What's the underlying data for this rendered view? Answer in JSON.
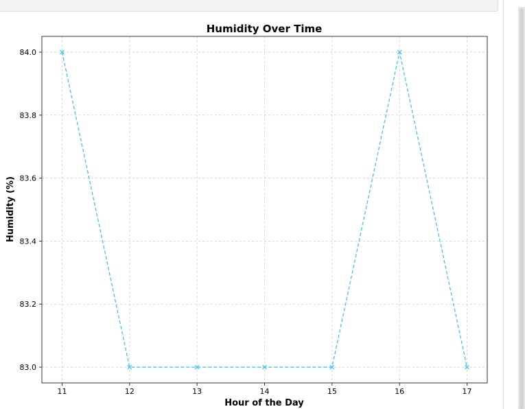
{
  "chart_data": {
    "type": "line",
    "title": "Humidity Over Time",
    "xlabel": "Hour of the Day",
    "ylabel": "Humidity (%)",
    "x": [
      11,
      12,
      13,
      14,
      15,
      16,
      17
    ],
    "series": [
      {
        "values": [
          84.0,
          83.0,
          83.0,
          83.0,
          83.0,
          84.0,
          83.0
        ],
        "color": "#3ec6f0"
      }
    ],
    "xticks": [
      "11",
      "12",
      "13",
      "14",
      "15",
      "16",
      "17"
    ],
    "yticks": [
      "83.0",
      "83.2",
      "83.4",
      "83.6",
      "83.8",
      "84.0"
    ],
    "xlim": [
      10.7,
      17.3
    ],
    "ylim": [
      82.95,
      84.05
    ],
    "grid": true,
    "line_style": "dashed",
    "marker": "x"
  }
}
